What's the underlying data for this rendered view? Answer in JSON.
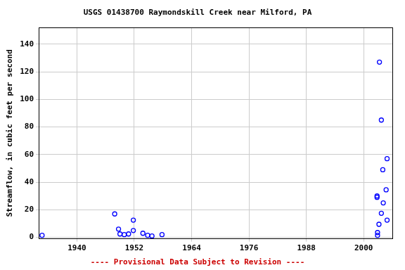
{
  "chart_data": {
    "type": "scatter",
    "title": "USGS 01438700 Raymondskill Creek near Milford, PA",
    "y_label": "Streamflow, in cubic feet per second",
    "annotations": [
      "---- Provisional Data Subject to Revision ----"
    ],
    "x": [
      1932.7,
      1947.9,
      1948.7,
      1949.0,
      1949.9,
      1950.8,
      1951.8,
      1951.8,
      1953.8,
      1954.8,
      1955.7,
      1957.8,
      2002.8,
      2002.8,
      2002.9,
      2002.9,
      2003.2,
      2003.3,
      2003.7,
      2003.7,
      2004.0,
      2004.1,
      2004.7,
      2004.9,
      2004.9
    ],
    "values": [
      1.5,
      17,
      6,
      2.5,
      2,
      2.5,
      5,
      12.5,
      3,
      1.5,
      1,
      2,
      30,
      29,
      3.5,
      1.5,
      9.5,
      127,
      85,
      17.5,
      49,
      25,
      34.5,
      57,
      12.5
    ],
    "color": "#0000ff",
    "marker": "circle",
    "xlim": [
      1932,
      2006
    ],
    "xticks": [
      1940,
      1952,
      1964,
      1976,
      1988,
      2000
    ],
    "ylim": [
      -1,
      152
    ],
    "yticks": [
      0,
      20,
      40,
      60,
      80,
      100,
      120,
      140
    ],
    "grid": true
  }
}
